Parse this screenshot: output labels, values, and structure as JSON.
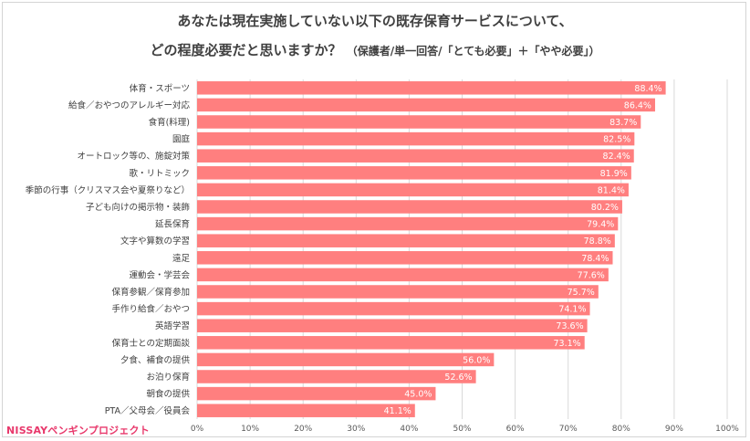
{
  "title_line1": "あなたは現在実施していない以下の既存保育サービスについて、",
  "title_line2_main": "どの程度必要だと思いますか？",
  "title_line2_sub": "（保護者/単一回答/「とても必要」＋「やや必要」）",
  "logo_text": "NISSAYペンギンプロジェクト",
  "colors": {
    "bar": "#ff7f7f",
    "label_on_bar": "#ffffff",
    "grid": "#d9d9d9",
    "logo": "#e8386b"
  },
  "chart_data": {
    "type": "bar",
    "orientation": "horizontal",
    "title": "あなたは現在実施していない以下の既存保育サービスについて、どの程度必要だと思いますか？（保護者/単一回答/「とても必要」＋「やや必要」）",
    "categories": [
      "体育・スポーツ",
      "給食／おやつのアレルギー対応",
      "食育(料理)",
      "園庭",
      "オートロック等の、施錠対策",
      "歌・リトミック",
      "季節の行事（クリスマス会や夏祭りなど）",
      "子ども向けの掲示物・装飾",
      "延長保育",
      "文字や算数の学習",
      "遠足",
      "運動会・学芸会",
      "保育参観／保育参加",
      "手作り給食／おやつ",
      "英語学習",
      "保育士との定期面談",
      "夕食、補食の提供",
      "お泊り保育",
      "朝食の提供",
      "PTA／父母会／役員会"
    ],
    "values": [
      88.4,
      86.4,
      83.7,
      82.5,
      82.4,
      81.9,
      81.4,
      80.2,
      79.4,
      78.8,
      78.4,
      77.6,
      75.7,
      74.1,
      73.6,
      73.1,
      56.0,
      52.6,
      45.0,
      41.1
    ],
    "value_labels": [
      "88.4%",
      "86.4%",
      "83.7%",
      "82.5%",
      "82.4%",
      "81.9%",
      "81.4%",
      "80.2%",
      "79.4%",
      "78.8%",
      "78.4%",
      "77.6%",
      "75.7%",
      "74.1%",
      "73.6%",
      "73.1%",
      "56.0%",
      "52.6%",
      "45.0%",
      "41.1%"
    ],
    "x_ticks": [
      "0%",
      "10%",
      "20%",
      "30%",
      "40%",
      "50%",
      "60%",
      "70%",
      "80%",
      "90%",
      "100%"
    ],
    "xlim": [
      0,
      100
    ],
    "unit": "%",
    "grid": true,
    "legend": false
  }
}
